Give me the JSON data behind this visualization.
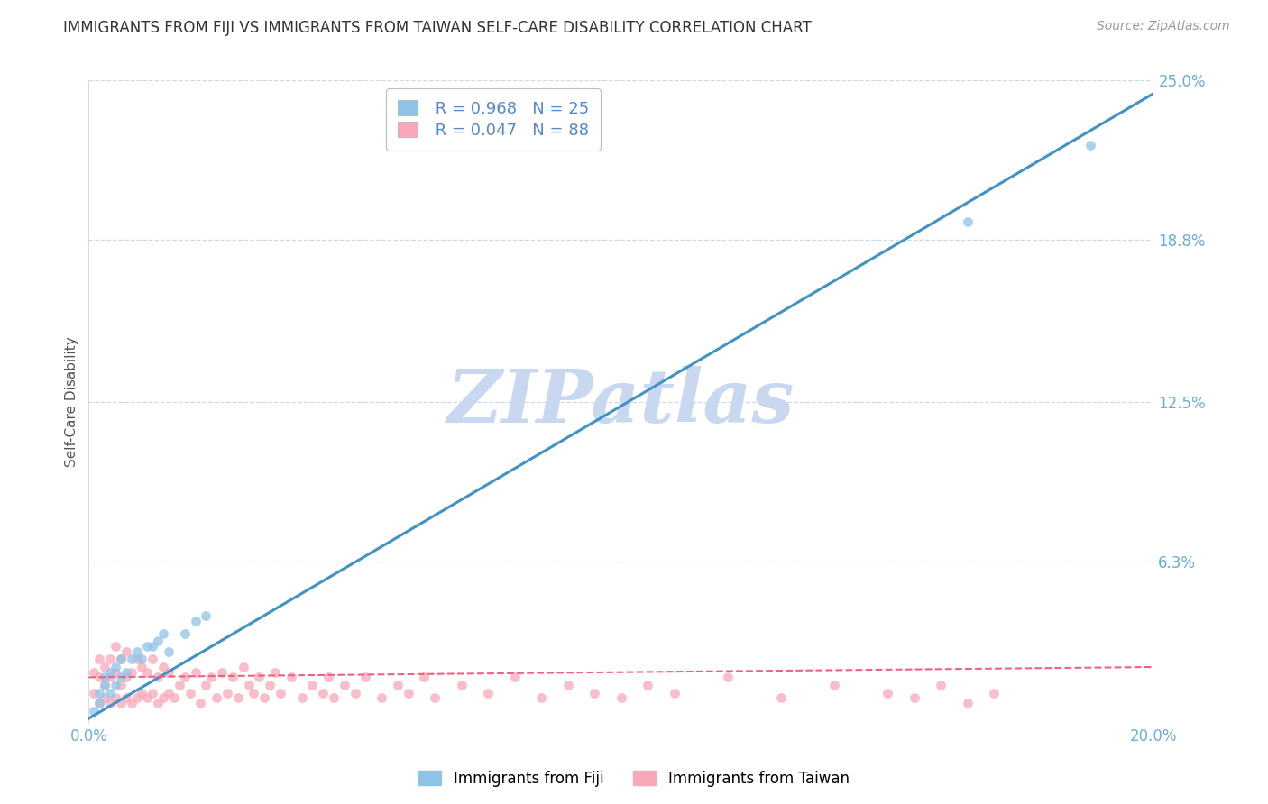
{
  "title": "IMMIGRANTS FROM FIJI VS IMMIGRANTS FROM TAIWAN SELF-CARE DISABILITY CORRELATION CHART",
  "source": "Source: ZipAtlas.com",
  "ylabel": "Self-Care Disability",
  "x_min": 0.0,
  "x_max": 0.2,
  "y_min": 0.0,
  "y_max": 0.25,
  "y_ticks": [
    0.0,
    0.063,
    0.125,
    0.188,
    0.25
  ],
  "y_tick_labels": [
    "",
    "6.3%",
    "12.5%",
    "18.8%",
    "25.0%"
  ],
  "x_tick_labels_left": "0.0%",
  "x_tick_labels_right": "20.0%",
  "fiji_color": "#8ec4e8",
  "taiwan_color": "#f8a8b8",
  "fiji_line_color": "#4292c6",
  "taiwan_line_color": "#f06080",
  "fiji_R": 0.968,
  "fiji_N": 25,
  "taiwan_R": 0.047,
  "taiwan_N": 88,
  "background_color": "#ffffff",
  "grid_color": "#c8d4e8",
  "watermark": "ZIPatlas",
  "watermark_color": "#c8d8f0",
  "legend_fiji": "Immigrants from Fiji",
  "legend_taiwan": "Immigrants from Taiwan",
  "fiji_line_x0": 0.0,
  "fiji_line_y0": 0.002,
  "fiji_line_x1": 0.2,
  "fiji_line_y1": 0.245,
  "taiwan_line_x0": 0.0,
  "taiwan_line_y0": 0.018,
  "taiwan_line_x1": 0.2,
  "taiwan_line_y1": 0.022,
  "fiji_scatter_x": [
    0.001,
    0.002,
    0.002,
    0.003,
    0.003,
    0.004,
    0.004,
    0.005,
    0.005,
    0.006,
    0.006,
    0.007,
    0.008,
    0.009,
    0.01,
    0.011,
    0.012,
    0.013,
    0.014,
    0.015,
    0.018,
    0.02,
    0.022,
    0.165,
    0.188
  ],
  "fiji_scatter_y": [
    0.005,
    0.008,
    0.012,
    0.015,
    0.018,
    0.012,
    0.02,
    0.015,
    0.022,
    0.018,
    0.025,
    0.02,
    0.025,
    0.028,
    0.025,
    0.03,
    0.03,
    0.032,
    0.035,
    0.028,
    0.035,
    0.04,
    0.042,
    0.195,
    0.225
  ],
  "taiwan_scatter_x": [
    0.001,
    0.001,
    0.002,
    0.002,
    0.002,
    0.003,
    0.003,
    0.003,
    0.004,
    0.004,
    0.004,
    0.005,
    0.005,
    0.005,
    0.006,
    0.006,
    0.006,
    0.007,
    0.007,
    0.007,
    0.008,
    0.008,
    0.009,
    0.009,
    0.01,
    0.01,
    0.011,
    0.011,
    0.012,
    0.012,
    0.013,
    0.013,
    0.014,
    0.014,
    0.015,
    0.015,
    0.016,
    0.017,
    0.018,
    0.019,
    0.02,
    0.021,
    0.022,
    0.023,
    0.024,
    0.025,
    0.026,
    0.027,
    0.028,
    0.029,
    0.03,
    0.031,
    0.032,
    0.033,
    0.034,
    0.035,
    0.036,
    0.038,
    0.04,
    0.042,
    0.044,
    0.045,
    0.046,
    0.048,
    0.05,
    0.052,
    0.055,
    0.058,
    0.06,
    0.063,
    0.065,
    0.07,
    0.075,
    0.08,
    0.085,
    0.09,
    0.095,
    0.1,
    0.105,
    0.11,
    0.12,
    0.13,
    0.14,
    0.15,
    0.155,
    0.16,
    0.165,
    0.17
  ],
  "taiwan_scatter_y": [
    0.012,
    0.02,
    0.008,
    0.018,
    0.025,
    0.01,
    0.015,
    0.022,
    0.008,
    0.018,
    0.025,
    0.01,
    0.02,
    0.03,
    0.008,
    0.015,
    0.025,
    0.01,
    0.018,
    0.028,
    0.008,
    0.02,
    0.01,
    0.025,
    0.012,
    0.022,
    0.01,
    0.02,
    0.012,
    0.025,
    0.008,
    0.018,
    0.01,
    0.022,
    0.012,
    0.02,
    0.01,
    0.015,
    0.018,
    0.012,
    0.02,
    0.008,
    0.015,
    0.018,
    0.01,
    0.02,
    0.012,
    0.018,
    0.01,
    0.022,
    0.015,
    0.012,
    0.018,
    0.01,
    0.015,
    0.02,
    0.012,
    0.018,
    0.01,
    0.015,
    0.012,
    0.018,
    0.01,
    0.015,
    0.012,
    0.018,
    0.01,
    0.015,
    0.012,
    0.018,
    0.01,
    0.015,
    0.012,
    0.018,
    0.01,
    0.015,
    0.012,
    0.01,
    0.015,
    0.012,
    0.018,
    0.01,
    0.015,
    0.012,
    0.01,
    0.015,
    0.008,
    0.012
  ]
}
